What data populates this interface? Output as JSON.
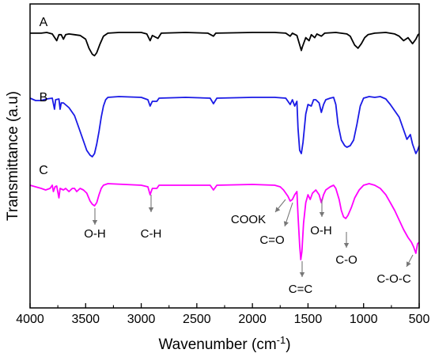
{
  "chart_data": {
    "type": "line",
    "title": "",
    "xlabel": "Wavenumber",
    "xlabel_unit": "(cm",
    "xlabel_exp": "-1",
    "xlabel_close": ")",
    "ylabel": "Transmittance  (a.u)",
    "xlim": [
      4000,
      500
    ],
    "x_reversed": true,
    "x_ticks": [
      4000,
      3500,
      3000,
      2500,
      2000,
      1500,
      1000,
      500
    ],
    "y_ticks": [],
    "grid": false,
    "legend": "none",
    "series": [
      {
        "name": "A",
        "color": "#000000",
        "points": [
          [
            4000,
            -2
          ],
          [
            3900,
            -2
          ],
          [
            3850,
            -1
          ],
          [
            3800,
            -3
          ],
          [
            3760,
            -12
          ],
          [
            3740,
            -4
          ],
          [
            3720,
            -4
          ],
          [
            3700,
            -10
          ],
          [
            3680,
            -4
          ],
          [
            3650,
            -3
          ],
          [
            3600,
            -4
          ],
          [
            3550,
            -5
          ],
          [
            3500,
            -10
          ],
          [
            3470,
            -22
          ],
          [
            3440,
            -30
          ],
          [
            3420,
            -32
          ],
          [
            3400,
            -28
          ],
          [
            3370,
            -16
          ],
          [
            3340,
            -6
          ],
          [
            3300,
            -2
          ],
          [
            3200,
            -1
          ],
          [
            3000,
            -1
          ],
          [
            2950,
            -3
          ],
          [
            2920,
            -12
          ],
          [
            2900,
            -5
          ],
          [
            2850,
            -9
          ],
          [
            2820,
            -2
          ],
          [
            2600,
            -1
          ],
          [
            2400,
            -2
          ],
          [
            2350,
            -6
          ],
          [
            2330,
            -2
          ],
          [
            2000,
            -1
          ],
          [
            1800,
            -1
          ],
          [
            1700,
            -2
          ],
          [
            1660,
            -6
          ],
          [
            1640,
            -2
          ],
          [
            1600,
            -5
          ],
          [
            1580,
            -15
          ],
          [
            1560,
            -25
          ],
          [
            1550,
            -20
          ],
          [
            1520,
            -8
          ],
          [
            1490,
            -12
          ],
          [
            1470,
            -4
          ],
          [
            1440,
            -8
          ],
          [
            1420,
            -3
          ],
          [
            1380,
            -6
          ],
          [
            1350,
            -2
          ],
          [
            1250,
            -1
          ],
          [
            1150,
            -3
          ],
          [
            1120,
            -6
          ],
          [
            1080,
            -18
          ],
          [
            1050,
            -22
          ],
          [
            1020,
            -16
          ],
          [
            990,
            -8
          ],
          [
            960,
            -4
          ],
          [
            900,
            -2
          ],
          [
            800,
            -1
          ],
          [
            720,
            -3
          ],
          [
            680,
            -6
          ],
          [
            640,
            -12
          ],
          [
            600,
            -8
          ],
          [
            560,
            -16
          ],
          [
            530,
            -10
          ],
          [
            510,
            -4
          ],
          [
            500,
            -3
          ]
        ]
      },
      {
        "name": "B",
        "color": "#1a1ae6",
        "points": [
          [
            4000,
            -2
          ],
          [
            3950,
            -5
          ],
          [
            3900,
            -5
          ],
          [
            3850,
            -3
          ],
          [
            3800,
            -2
          ],
          [
            3780,
            -16
          ],
          [
            3770,
            -4
          ],
          [
            3740,
            -3
          ],
          [
            3730,
            -16
          ],
          [
            3720,
            -8
          ],
          [
            3700,
            -8
          ],
          [
            3650,
            -14
          ],
          [
            3600,
            -24
          ],
          [
            3560,
            -40
          ],
          [
            3520,
            -56
          ],
          [
            3490,
            -68
          ],
          [
            3460,
            -74
          ],
          [
            3440,
            -76
          ],
          [
            3420,
            -72
          ],
          [
            3400,
            -60
          ],
          [
            3380,
            -44
          ],
          [
            3360,
            -26
          ],
          [
            3340,
            -12
          ],
          [
            3320,
            -4
          ],
          [
            3300,
            -1
          ],
          [
            3200,
            0
          ],
          [
            3000,
            -1
          ],
          [
            2940,
            -4
          ],
          [
            2920,
            -12
          ],
          [
            2900,
            -6
          ],
          [
            2860,
            -6
          ],
          [
            2840,
            -2
          ],
          [
            2600,
            -1
          ],
          [
            2380,
            -2
          ],
          [
            2350,
            -9
          ],
          [
            2320,
            -2
          ],
          [
            2000,
            -1
          ],
          [
            1800,
            -1
          ],
          [
            1700,
            -2
          ],
          [
            1660,
            -10
          ],
          [
            1640,
            -4
          ],
          [
            1620,
            -12
          ],
          [
            1600,
            -6
          ],
          [
            1590,
            -40
          ],
          [
            1575,
            -68
          ],
          [
            1560,
            -72
          ],
          [
            1545,
            -58
          ],
          [
            1520,
            -22
          ],
          [
            1500,
            -10
          ],
          [
            1470,
            -12
          ],
          [
            1450,
            -4
          ],
          [
            1430,
            -4
          ],
          [
            1400,
            -8
          ],
          [
            1380,
            -20
          ],
          [
            1360,
            -10
          ],
          [
            1340,
            -4
          ],
          [
            1300,
            -2
          ],
          [
            1270,
            -1
          ],
          [
            1250,
            -10
          ],
          [
            1230,
            -35
          ],
          [
            1200,
            -55
          ],
          [
            1170,
            -62
          ],
          [
            1150,
            -64
          ],
          [
            1120,
            -62
          ],
          [
            1090,
            -55
          ],
          [
            1060,
            -35
          ],
          [
            1030,
            -12
          ],
          [
            1000,
            -2
          ],
          [
            950,
            0
          ],
          [
            900,
            -1
          ],
          [
            850,
            0
          ],
          [
            800,
            -3
          ],
          [
            760,
            -10
          ],
          [
            720,
            -18
          ],
          [
            680,
            -26
          ],
          [
            640,
            -42
          ],
          [
            610,
            -54
          ],
          [
            580,
            -48
          ],
          [
            560,
            -60
          ],
          [
            530,
            -72
          ],
          [
            515,
            -68
          ],
          [
            500,
            -62
          ]
        ]
      },
      {
        "name": "C",
        "color": "#ff00ff",
        "points": [
          [
            4000,
            -2
          ],
          [
            3950,
            -4
          ],
          [
            3900,
            -6
          ],
          [
            3860,
            -8
          ],
          [
            3820,
            -6
          ],
          [
            3800,
            -2
          ],
          [
            3790,
            -10
          ],
          [
            3775,
            -4
          ],
          [
            3760,
            -3
          ],
          [
            3740,
            -18
          ],
          [
            3730,
            -6
          ],
          [
            3700,
            -8
          ],
          [
            3680,
            -6
          ],
          [
            3650,
            -10
          ],
          [
            3620,
            -6
          ],
          [
            3600,
            -6
          ],
          [
            3580,
            -10
          ],
          [
            3550,
            -6
          ],
          [
            3520,
            -8
          ],
          [
            3490,
            -12
          ],
          [
            3460,
            -22
          ],
          [
            3440,
            -26
          ],
          [
            3420,
            -28
          ],
          [
            3400,
            -24
          ],
          [
            3380,
            -14
          ],
          [
            3360,
            -6
          ],
          [
            3340,
            -2
          ],
          [
            3300,
            0
          ],
          [
            3000,
            -2
          ],
          [
            2940,
            -4
          ],
          [
            2920,
            -14
          ],
          [
            2900,
            -6
          ],
          [
            2860,
            -6
          ],
          [
            2840,
            -2
          ],
          [
            2600,
            -2
          ],
          [
            2380,
            -2
          ],
          [
            2350,
            -8
          ],
          [
            2320,
            -2
          ],
          [
            2000,
            -1
          ],
          [
            1800,
            -2
          ],
          [
            1750,
            -4
          ],
          [
            1720,
            -8
          ],
          [
            1700,
            -12
          ],
          [
            1680,
            -16
          ],
          [
            1660,
            -22
          ],
          [
            1640,
            -20
          ],
          [
            1620,
            -14
          ],
          [
            1600,
            -10
          ],
          [
            1590,
            -40
          ],
          [
            1575,
            -78
          ],
          [
            1565,
            -96
          ],
          [
            1555,
            -86
          ],
          [
            1540,
            -50
          ],
          [
            1520,
            -24
          ],
          [
            1500,
            -14
          ],
          [
            1480,
            -20
          ],
          [
            1460,
            -12
          ],
          [
            1430,
            -8
          ],
          [
            1400,
            -14
          ],
          [
            1380,
            -24
          ],
          [
            1360,
            -14
          ],
          [
            1340,
            -8
          ],
          [
            1300,
            -4
          ],
          [
            1270,
            -2
          ],
          [
            1250,
            -6
          ],
          [
            1220,
            -20
          ],
          [
            1200,
            -34
          ],
          [
            1180,
            -42
          ],
          [
            1160,
            -44
          ],
          [
            1140,
            -40
          ],
          [
            1110,
            -30
          ],
          [
            1080,
            -18
          ],
          [
            1040,
            -8
          ],
          [
            1000,
            -2
          ],
          [
            950,
            0
          ],
          [
            900,
            -2
          ],
          [
            850,
            -6
          ],
          [
            800,
            -14
          ],
          [
            760,
            -24
          ],
          [
            720,
            -34
          ],
          [
            680,
            -46
          ],
          [
            640,
            -58
          ],
          [
            600,
            -68
          ],
          [
            570,
            -74
          ],
          [
            550,
            -80
          ],
          [
            530,
            -88
          ],
          [
            515,
            -76
          ],
          [
            500,
            -74
          ]
        ]
      }
    ],
    "annotations": [
      {
        "label": "O-H",
        "x": 3440
      },
      {
        "label": "C-H",
        "x": 2920
      },
      {
        "label": "COOK",
        "x": 1660
      },
      {
        "label": "C=O",
        "x": 1620
      },
      {
        "label": "C=C",
        "x": 1565
      },
      {
        "label": "O-H",
        "x": 1380
      },
      {
        "label": "C-O",
        "x": 1160
      },
      {
        "label": "C-O-C",
        "x": 530
      }
    ]
  }
}
